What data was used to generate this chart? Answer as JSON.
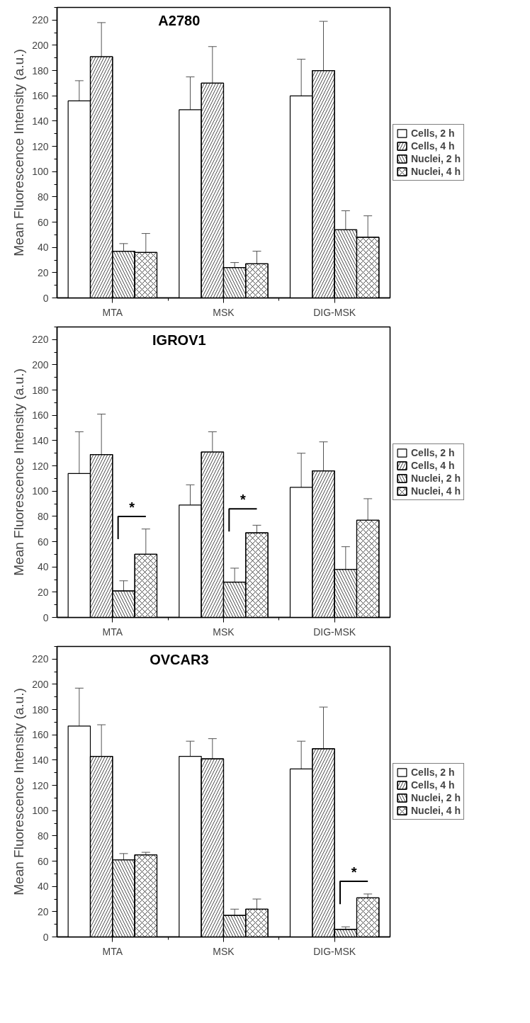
{
  "chart_data": [
    {
      "type": "bar",
      "title": "A2780",
      "ylabel": "Mean Fluorescence Intensity (a.u.)",
      "categories": [
        "MTA",
        "MSK",
        "DIG-MSK"
      ],
      "ylim": [
        0,
        230
      ],
      "yticks": [
        0,
        20,
        40,
        60,
        80,
        100,
        120,
        140,
        160,
        180,
        200,
        220
      ],
      "legend": "right",
      "grid": false,
      "series": [
        {
          "name": "Cells, 2 h",
          "color": "#ffffff",
          "values": [
            156,
            149,
            160
          ],
          "errors": [
            [
              156,
              172
            ],
            [
              149,
              175
            ],
            [
              160,
              189
            ]
          ]
        },
        {
          "name": "Cells, 4 h",
          "color": "#ffffff",
          "values": [
            191,
            170,
            180
          ],
          "errors": [
            [
              191,
              218
            ],
            [
              170,
              199
            ],
            [
              180,
              219
            ]
          ]
        },
        {
          "name": "Nuclei, 2 h",
          "color": "#ffffff",
          "values": [
            37,
            24,
            54
          ],
          "errors": [
            [
              37,
              43
            ],
            [
              24,
              28
            ],
            [
              54,
              69
            ]
          ]
        },
        {
          "name": "Nuclei, 4 h",
          "color": "#ffffff",
          "values": [
            36,
            27,
            48
          ],
          "errors": [
            [
              36,
              51
            ],
            [
              27,
              37
            ],
            [
              48,
              65
            ]
          ]
        }
      ]
    },
    {
      "type": "bar",
      "title": "IGROV1",
      "ylabel": "Mean Fluorescence Intensity (a.u.)",
      "categories": [
        "MTA",
        "MSK",
        "DIG-MSK"
      ],
      "ylim": [
        0,
        230
      ],
      "yticks": [
        0,
        20,
        40,
        60,
        80,
        100,
        120,
        140,
        160,
        180,
        200,
        220
      ],
      "legend": "right",
      "grid": false,
      "annotations": [
        {
          "text": "*",
          "x": "MTA",
          "y": 80
        },
        {
          "text": "*",
          "x": "MSK",
          "y": 86
        }
      ],
      "series": [
        {
          "name": "Cells, 2 h",
          "color": "#ffffff",
          "values": [
            114,
            89,
            103
          ],
          "errors": [
            [
              114,
              147
            ],
            [
              89,
              105
            ],
            [
              103,
              130
            ]
          ]
        },
        {
          "name": "Cells, 4 h",
          "color": "#ffffff",
          "values": [
            129,
            131,
            116
          ],
          "errors": [
            [
              129,
              161
            ],
            [
              131,
              147
            ],
            [
              116,
              139
            ]
          ]
        },
        {
          "name": "Nuclei, 2 h",
          "color": "#ffffff",
          "values": [
            21,
            28,
            38
          ],
          "errors": [
            [
              21,
              29
            ],
            [
              28,
              39
            ],
            [
              38,
              56
            ]
          ]
        },
        {
          "name": "Nuclei, 4 h",
          "color": "#ffffff",
          "values": [
            50,
            67,
            77
          ],
          "errors": [
            [
              50,
              70
            ],
            [
              67,
              73
            ],
            [
              77,
              94
            ]
          ]
        }
      ]
    },
    {
      "type": "bar",
      "title": "OVCAR3",
      "ylabel": "Mean Fluorescence Intensity (a.u.)",
      "categories": [
        "MTA",
        "MSK",
        "DIG-MSK"
      ],
      "ylim": [
        0,
        230
      ],
      "yticks": [
        0,
        20,
        40,
        60,
        80,
        100,
        120,
        140,
        160,
        180,
        200,
        220
      ],
      "legend": "right",
      "grid": false,
      "annotations": [
        {
          "text": "*",
          "x": "DIG-MSK",
          "y": 44
        }
      ],
      "series": [
        {
          "name": "Cells, 2 h",
          "color": "#ffffff",
          "values": [
            167,
            143,
            133
          ],
          "errors": [
            [
              167,
              197
            ],
            [
              143,
              155
            ],
            [
              133,
              155
            ]
          ]
        },
        {
          "name": "Cells, 4 h",
          "color": "#ffffff",
          "values": [
            143,
            141,
            149
          ],
          "errors": [
            [
              143,
              168
            ],
            [
              141,
              157
            ],
            [
              149,
              182
            ]
          ]
        },
        {
          "name": "Nuclei, 2 h",
          "color": "#ffffff",
          "values": [
            61,
            17,
            6
          ],
          "errors": [
            [
              61,
              66
            ],
            [
              17,
              22
            ],
            [
              6,
              8
            ]
          ]
        },
        {
          "name": "Nuclei, 4 h",
          "color": "#ffffff",
          "values": [
            65,
            22,
            31
          ],
          "errors": [
            [
              65,
              67
            ],
            [
              22,
              30
            ],
            [
              31,
              34
            ]
          ]
        }
      ]
    }
  ]
}
